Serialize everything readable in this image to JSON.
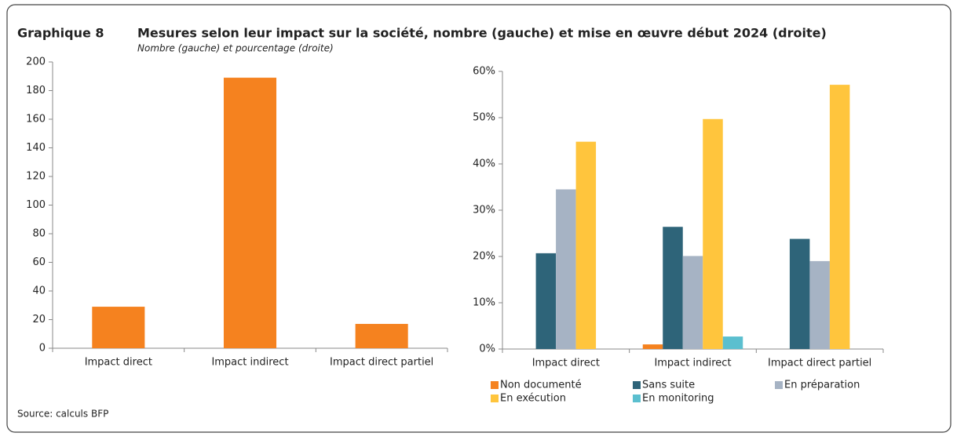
{
  "figure_label": "Graphique 8",
  "title": "Mesures selon leur impact sur la société, nombre (gauche) et mise en œuvre début 2024 (droite)",
  "subtitle": "Nombre (gauche) et pourcentage (droite)",
  "source": "Source: calculs BFP",
  "chart_data": [
    {
      "type": "bar",
      "categories": [
        "Impact direct",
        "Impact indirect",
        "Impact direct partiel"
      ],
      "values": [
        29,
        189,
        17
      ],
      "color": "#f5821f",
      "ylim": [
        0,
        200
      ],
      "yticks": [
        0,
        20,
        40,
        60,
        80,
        100,
        120,
        140,
        160,
        180,
        200
      ]
    },
    {
      "type": "grouped_bar",
      "categories": [
        "Impact direct",
        "Impact indirect",
        "Impact direct partiel"
      ],
      "series": [
        {
          "name": "Non documenté",
          "color": "#f5821f",
          "values": [
            0,
            1,
            0
          ]
        },
        {
          "name": "Sans suite",
          "color": "#2e6479",
          "values": [
            20.7,
            26.4,
            23.8
          ]
        },
        {
          "name": "En préparation",
          "color": "#a6b3c4",
          "values": [
            34.5,
            20.1,
            19.0
          ]
        },
        {
          "name": "En exécution",
          "color": "#ffc53d",
          "values": [
            44.8,
            49.7,
            57.1
          ]
        },
        {
          "name": "En monitoring",
          "color": "#5bbfcf",
          "values": [
            0,
            2.7,
            0
          ]
        }
      ],
      "ylim": [
        0,
        60
      ],
      "yticks": [
        {
          "value": 0,
          "label": "0%"
        },
        {
          "value": 10,
          "label": "10%"
        },
        {
          "value": 20,
          "label": "20%"
        },
        {
          "value": 30,
          "label": "30%"
        },
        {
          "value": 40,
          "label": "40%"
        },
        {
          "value": 50,
          "label": "50%"
        },
        {
          "value": 60,
          "label": "60%"
        }
      ],
      "legend": "bottom"
    }
  ]
}
